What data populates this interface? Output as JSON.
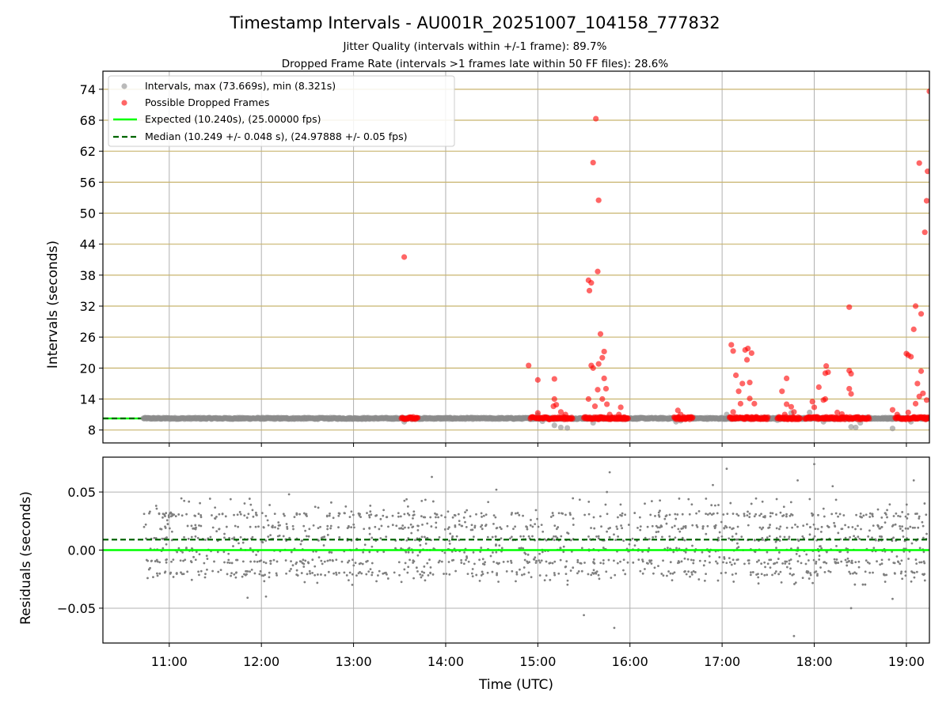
{
  "chart_data": [
    {
      "type": "scatter",
      "title": "Timestamp Intervals - AU001R_20251007_104158_777832",
      "subtitles": [
        "Jitter Quality (intervals within +/-1 frame): 89.7%",
        "Dropped Frame Rate (intervals >1 frames late within 50 FF files): 28.6%"
      ],
      "xlabel": "",
      "ylabel": "Intervals (seconds)",
      "xlim_hours": [
        10.28,
        19.25
      ],
      "ylim": [
        5.5,
        77.5
      ],
      "yticks": [
        8,
        14,
        20,
        26,
        32,
        38,
        44,
        50,
        56,
        62,
        68,
        74
      ],
      "ytick_labels": [
        "8",
        "14",
        "20",
        "26",
        "32",
        "38",
        "44",
        "50",
        "56",
        "62",
        "68",
        "74"
      ],
      "grid": {
        "x": true,
        "y": true,
        "y_color": "#c8b46e"
      },
      "legend_position": "upper-left",
      "legend": [
        "Intervals, max (73.669s), min (8.321s)",
        "Possible Dropped Frames",
        "Expected (10.240s), (25.00000 fps)",
        "Median (10.249 +/- 0.048 s), (24.97888 +/- 0.05 fps)"
      ],
      "expected_line": 10.24,
      "median_line": 10.249,
      "normal_band": {
        "x_start": 10.72,
        "x_end": 19.25,
        "y": 10.25
      },
      "series": [
        {
          "name": "Intervals",
          "color": "#8c8c8c",
          "points": [
            [
              13.55,
              9.6
            ],
            [
              15.05,
              9.7
            ],
            [
              15.18,
              8.9
            ],
            [
              15.25,
              8.5
            ],
            [
              15.32,
              8.4
            ],
            [
              15.6,
              9.4
            ],
            [
              16.5,
              9.6
            ],
            [
              17.05,
              11.0
            ],
            [
              17.6,
              9.9
            ],
            [
              17.95,
              11.4
            ],
            [
              18.1,
              9.6
            ],
            [
              18.4,
              8.6
            ],
            [
              18.45,
              8.5
            ],
            [
              18.5,
              9.4
            ],
            [
              18.85,
              8.3
            ],
            [
              18.92,
              10.6
            ],
            [
              19.05,
              9.6
            ],
            [
              15.0,
              10.9
            ],
            [
              17.75,
              11.3
            ],
            [
              16.55,
              9.8
            ]
          ]
        },
        {
          "name": "Possible Dropped Frames",
          "color": "#ff0000",
          "band_segments": [
            [
              13.52,
              13.7
            ],
            [
              14.92,
              15.38
            ],
            [
              15.5,
              15.98
            ],
            [
              16.48,
              16.68
            ],
            [
              17.08,
              17.5
            ],
            [
              17.6,
              17.85
            ],
            [
              17.9,
              18.6
            ],
            [
              18.88,
              19.25
            ]
          ],
          "band_y": 10.3,
          "points": [
            [
              13.55,
              41.5
            ],
            [
              14.9,
              20.5
            ],
            [
              15.0,
              17.7
            ],
            [
              15.0,
              11.3
            ],
            [
              15.18,
              17.9
            ],
            [
              15.18,
              14.0
            ],
            [
              15.17,
              12.6
            ],
            [
              15.2,
              12.9
            ],
            [
              15.25,
              11.5
            ],
            [
              15.3,
              11.0
            ],
            [
              15.55,
              14.0
            ],
            [
              15.55,
              37.0
            ],
            [
              15.58,
              36.5
            ],
            [
              15.56,
              35.0
            ],
            [
              15.58,
              20.5
            ],
            [
              15.6,
              20.0
            ],
            [
              15.6,
              59.8
            ],
            [
              15.63,
              68.3
            ],
            [
              15.65,
              38.7
            ],
            [
              15.66,
              52.5
            ],
            [
              15.66,
              20.8
            ],
            [
              15.68,
              26.6
            ],
            [
              15.7,
              22.0
            ],
            [
              15.72,
              23.2
            ],
            [
              15.72,
              18.0
            ],
            [
              15.7,
              14.0
            ],
            [
              15.74,
              16.0
            ],
            [
              15.75,
              13.0
            ],
            [
              15.78,
              11.0
            ],
            [
              15.62,
              12.6
            ],
            [
              15.65,
              15.8
            ],
            [
              15.9,
              12.4
            ],
            [
              15.88,
              11.0
            ],
            [
              16.52,
              11.8
            ],
            [
              16.55,
              11.0
            ],
            [
              17.1,
              24.5
            ],
            [
              17.12,
              23.3
            ],
            [
              17.15,
              18.6
            ],
            [
              17.18,
              15.5
            ],
            [
              17.22,
              17.0
            ],
            [
              17.25,
              23.5
            ],
            [
              17.27,
              21.6
            ],
            [
              17.28,
              23.8
            ],
            [
              17.3,
              17.2
            ],
            [
              17.3,
              14.1
            ],
            [
              17.32,
              22.9
            ],
            [
              17.2,
              13.1
            ],
            [
              17.35,
              13.1
            ],
            [
              17.12,
              11.5
            ],
            [
              17.7,
              18.0
            ],
            [
              17.7,
              13.0
            ],
            [
              17.65,
              15.5
            ],
            [
              17.75,
              12.5
            ],
            [
              17.78,
              11.5
            ],
            [
              17.68,
              11.0
            ],
            [
              17.98,
              13.5
            ],
            [
              18.0,
              12.4
            ],
            [
              18.1,
              13.8
            ],
            [
              18.12,
              14.0
            ],
            [
              18.12,
              19.0
            ],
            [
              18.13,
              20.4
            ],
            [
              18.15,
              19.2
            ],
            [
              18.05,
              16.3
            ],
            [
              18.25,
              11.4
            ],
            [
              18.38,
              31.8
            ],
            [
              18.38,
              19.5
            ],
            [
              18.38,
              16.0
            ],
            [
              18.4,
              18.9
            ],
            [
              18.4,
              15.0
            ],
            [
              18.3,
              11.1
            ],
            [
              18.85,
              11.9
            ],
            [
              18.9,
              11.0
            ],
            [
              19.0,
              22.8
            ],
            [
              19.02,
              22.5
            ],
            [
              19.05,
              22.2
            ],
            [
              19.08,
              27.5
            ],
            [
              19.1,
              32.0
            ],
            [
              19.1,
              13.1
            ],
            [
              19.12,
              17.0
            ],
            [
              19.14,
              14.5
            ],
            [
              19.14,
              59.7
            ],
            [
              19.16,
              30.5
            ],
            [
              19.16,
              19.4
            ],
            [
              19.18,
              15.1
            ],
            [
              19.2,
              46.3
            ],
            [
              19.22,
              52.4
            ],
            [
              19.23,
              58.1
            ],
            [
              19.25,
              73.6
            ],
            [
              19.22,
              13.8
            ],
            [
              19.02,
              11.4
            ]
          ]
        }
      ]
    },
    {
      "type": "scatter",
      "title": "",
      "xlabel": "Time (UTC)",
      "ylabel": "Residuals (seconds)",
      "xlim_hours": [
        10.28,
        19.25
      ],
      "ylim": [
        -0.08,
        0.08
      ],
      "yticks": [
        -0.05,
        0.0,
        0.05
      ],
      "ytick_labels": [
        "−0.05",
        "0.00",
        "0.05"
      ],
      "grid": {
        "x": true,
        "y": true
      },
      "expected_line": 0.0,
      "median_line": 0.009,
      "residual_summary": {
        "x_range": [
          10.72,
          19.22
        ],
        "typical_levels": [
          -0.02,
          -0.01,
          0.0,
          0.01,
          0.02,
          0.03
        ],
        "point_count": 1600,
        "color": "#7f7f7f"
      },
      "residual_outliers": [
        [
          11.85,
          -0.041
        ],
        [
          12.05,
          -0.04
        ],
        [
          13.85,
          0.063
        ],
        [
          15.5,
          -0.056
        ],
        [
          15.78,
          0.067
        ],
        [
          15.83,
          -0.067
        ],
        [
          17.05,
          0.07
        ],
        [
          17.78,
          -0.074
        ],
        [
          18.0,
          0.074
        ],
        [
          18.4,
          -0.05
        ],
        [
          18.85,
          -0.042
        ],
        [
          19.08,
          0.06
        ],
        [
          17.82,
          0.06
        ],
        [
          18.2,
          0.055
        ],
        [
          15.75,
          0.05
        ],
        [
          12.3,
          0.048
        ],
        [
          14.55,
          0.052
        ],
        [
          16.9,
          0.056
        ]
      ],
      "xticks": [
        11,
        12,
        13,
        14,
        15,
        16,
        17,
        18,
        19
      ],
      "xtick_labels": [
        "11:00",
        "12:00",
        "13:00",
        "14:00",
        "15:00",
        "16:00",
        "17:00",
        "18:00",
        "19:00"
      ]
    }
  ]
}
